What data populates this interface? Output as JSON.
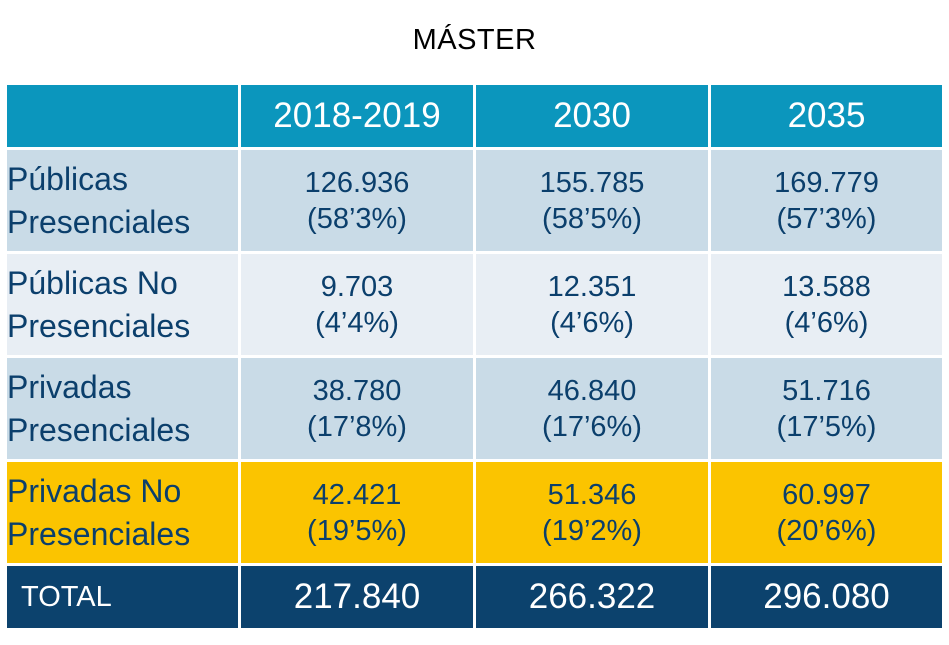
{
  "title": "MÁSTER",
  "chart_data": {
    "type": "table",
    "title": "MÁSTER",
    "columns": [
      "2018-2019",
      "2030",
      "2035"
    ],
    "rows": [
      {
        "label": "Públicas Presenciales",
        "values": [
          126936,
          155785,
          169779
        ],
        "display": [
          "126.936",
          "155.785",
          "169.779"
        ],
        "shares": [
          "(58’3%)",
          "(58’5%)",
          "(57’3%)"
        ]
      },
      {
        "label": "Públicas No Presenciales",
        "values": [
          9703,
          12351,
          13588
        ],
        "display": [
          "9.703",
          "12.351",
          "13.588"
        ],
        "shares": [
          "(4’4%)",
          "(4’6%)",
          "(4’6%)"
        ]
      },
      {
        "label": "Privadas Presenciales",
        "values": [
          38780,
          46840,
          51716
        ],
        "display": [
          "38.780",
          "46.840",
          "51.716"
        ],
        "shares": [
          "(17’8%)",
          "(17’6%)",
          "(17’5%)"
        ]
      },
      {
        "label": "Privadas No Presenciales",
        "values": [
          42421,
          51346,
          60997
        ],
        "display": [
          "42.421",
          "51.346",
          "60.997"
        ],
        "shares": [
          "(19’5%)",
          "(19’2%)",
          "(20’6%)"
        ],
        "highlight": true
      }
    ],
    "total": {
      "label": "TOTAL",
      "values": [
        217840,
        266322,
        296080
      ],
      "display": [
        "217.840",
        "266.322",
        "296.080"
      ]
    }
  },
  "colors": {
    "header": "#0b96bd",
    "row_dark": "#c9dbe7",
    "row_light": "#e8eef4",
    "highlight": "#fbc400",
    "total": "#0c426d",
    "text": "#0b3f6c"
  }
}
